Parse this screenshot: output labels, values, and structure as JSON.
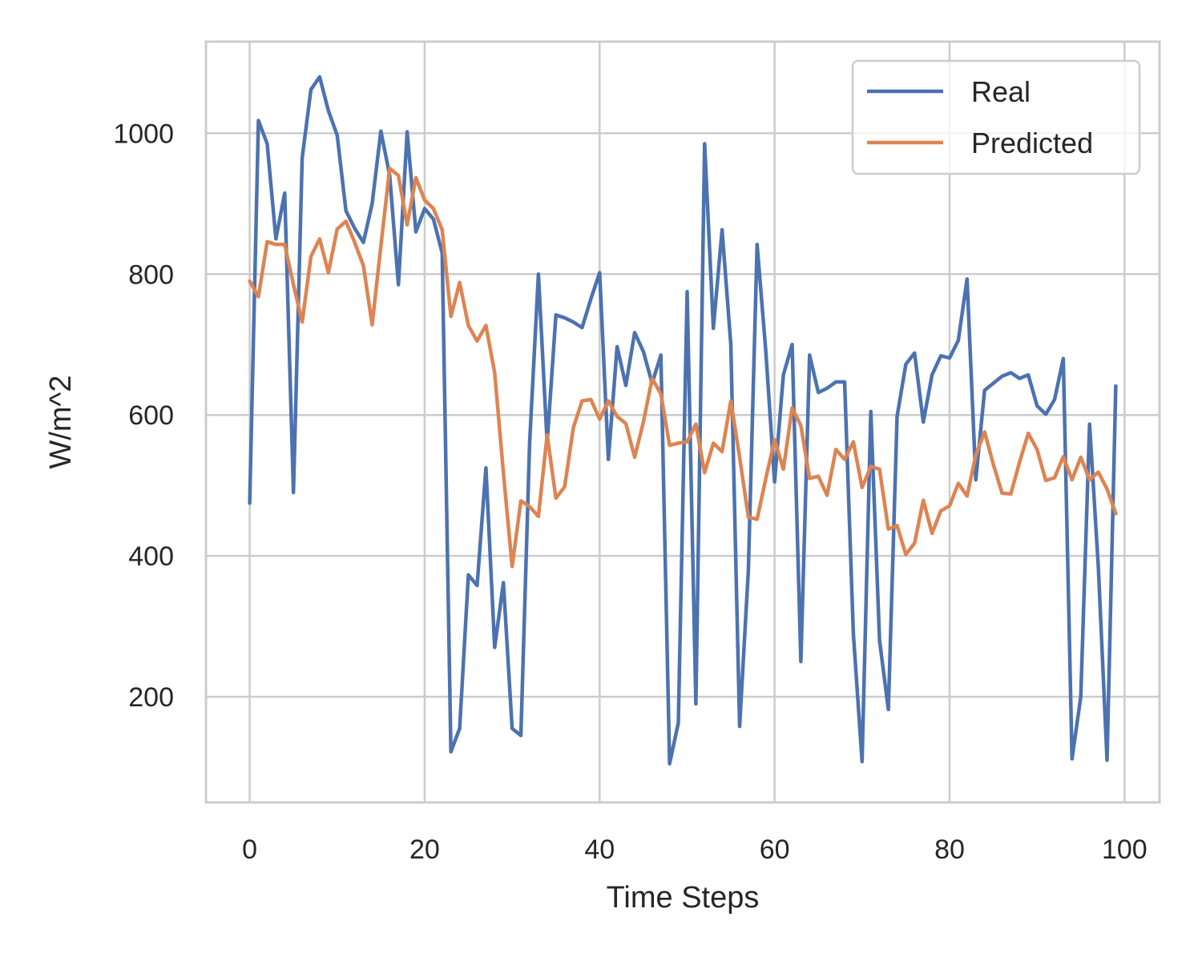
{
  "chart_data": {
    "type": "line",
    "xlabel": "Time Steps",
    "ylabel": "W/m^2",
    "xlim": [
      -5,
      104
    ],
    "ylim": [
      50,
      1130
    ],
    "x_ticks": [
      0,
      20,
      40,
      60,
      80,
      100
    ],
    "y_ticks": [
      200,
      400,
      600,
      800,
      1000
    ],
    "grid": true,
    "legend_position": "top-right",
    "x": [
      0,
      1,
      2,
      3,
      4,
      5,
      6,
      7,
      8,
      9,
      10,
      11,
      12,
      13,
      14,
      15,
      16,
      17,
      18,
      19,
      20,
      21,
      22,
      23,
      24,
      25,
      26,
      27,
      28,
      29,
      30,
      31,
      32,
      33,
      34,
      35,
      36,
      37,
      38,
      39,
      40,
      41,
      42,
      43,
      44,
      45,
      46,
      47,
      48,
      49,
      50,
      51,
      52,
      53,
      54,
      55,
      56,
      57,
      58,
      59,
      60,
      61,
      62,
      63,
      64,
      65,
      66,
      67,
      68,
      69,
      70,
      71,
      72,
      73,
      74,
      75,
      76,
      77,
      78,
      79,
      80,
      81,
      82,
      83,
      84,
      85,
      86,
      87,
      88,
      89,
      90,
      91,
      92,
      93,
      94,
      95,
      96,
      97,
      98,
      99
    ],
    "series": [
      {
        "name": "Real",
        "color": "#4c72b0",
        "values": [
          475,
          1018,
          985,
          850,
          915,
          490,
          965,
          1062,
          1080,
          1032,
          997,
          890,
          865,
          845,
          900,
          1003,
          940,
          785,
          1002,
          860,
          893,
          878,
          830,
          122,
          155,
          373,
          358,
          525,
          270,
          362,
          155,
          145,
          560,
          800,
          560,
          742,
          738,
          732,
          724,
          765,
          802,
          537,
          697,
          642,
          717,
          690,
          645,
          685,
          105,
          163,
          775,
          190,
          985,
          723,
          863,
          700,
          158,
          380,
          842,
          690,
          505,
          657,
          700,
          250,
          685,
          632,
          638,
          647,
          647,
          290,
          108,
          605,
          280,
          182,
          598,
          672,
          688,
          590,
          657,
          684,
          681,
          706,
          793,
          508,
          635,
          645,
          655,
          660,
          652,
          657,
          613,
          601,
          622,
          680,
          112,
          200,
          587,
          385,
          110,
          641
        ]
      },
      {
        "name": "Predicted",
        "color": "#dd8452",
        "values": [
          790,
          768,
          846,
          842,
          842,
          785,
          732,
          825,
          850,
          802,
          864,
          875,
          845,
          812,
          728,
          840,
          950,
          940,
          870,
          937,
          905,
          893,
          863,
          740,
          788,
          727,
          705,
          727,
          660,
          518,
          385,
          478,
          470,
          456,
          572,
          482,
          498,
          582,
          620,
          622,
          594,
          620,
          598,
          588,
          540,
          590,
          652,
          630,
          557,
          560,
          562,
          587,
          518,
          560,
          548,
          620,
          540,
          455,
          452,
          510,
          565,
          523,
          610,
          585,
          510,
          513,
          486,
          551,
          537,
          562,
          497,
          527,
          523,
          438,
          443,
          402,
          418,
          479,
          432,
          464,
          471,
          503,
          485,
          543,
          576,
          530,
          489,
          488,
          533,
          574,
          551,
          507,
          511,
          541,
          508,
          540,
          508,
          519,
          495,
          460
        ]
      }
    ]
  }
}
